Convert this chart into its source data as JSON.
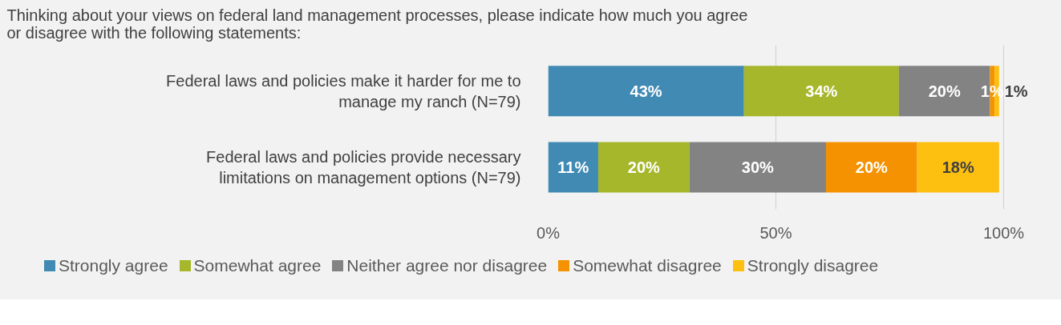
{
  "chart_data": {
    "type": "bar",
    "orientation": "horizontal",
    "stacked": true,
    "title": "Thinking about your views on federal land management processes, please indicate how much you agree or disagree with the following statements:",
    "categories": [
      "Federal laws and policies make it harder for me to manage my ranch (N=79)",
      "Federal laws and policies provide necessary limitations on management options (N=79)"
    ],
    "series": [
      {
        "name": "Strongly agree",
        "color": "#418ab3",
        "values": [
          43,
          11
        ],
        "value_labels": [
          "43%",
          "11%"
        ]
      },
      {
        "name": "Somewhat agree",
        "color": "#a6b72b",
        "values": [
          34,
          20
        ],
        "value_labels": [
          "34%",
          "20%"
        ]
      },
      {
        "name": "Neither agree nor disagree",
        "color": "#838383",
        "values": [
          20,
          30
        ],
        "value_labels": [
          "20%",
          "30%"
        ]
      },
      {
        "name": "Somewhat disagree",
        "color": "#f59201",
        "values": [
          1,
          20
        ],
        "value_labels": [
          "1%",
          "20%"
        ]
      },
      {
        "name": "Strongly disagree",
        "color": "#fdc010",
        "values": [
          1,
          18
        ],
        "value_labels": [
          "1%",
          "18%"
        ]
      }
    ],
    "xlim": [
      0,
      100
    ],
    "xticks": [
      {
        "value": 0,
        "label": "0%"
      },
      {
        "value": 50,
        "label": "50%"
      },
      {
        "value": 100,
        "label": "100%"
      }
    ],
    "grid": "x",
    "legend": "bottom"
  }
}
